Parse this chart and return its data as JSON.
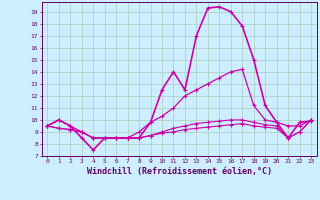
{
  "xlabel": "Windchill (Refroidissement éolien,°C)",
  "xlabel_fontsize": 6,
  "bg_color": "#cceeff",
  "grid_color": "#aaccbb",
  "line_color": "#cc00aa",
  "xlim": [
    -0.5,
    23.5
  ],
  "ylim": [
    7,
    19.8
  ],
  "xticks": [
    0,
    1,
    2,
    3,
    4,
    5,
    6,
    7,
    8,
    9,
    10,
    11,
    12,
    13,
    14,
    15,
    16,
    17,
    18,
    19,
    20,
    21,
    22,
    23
  ],
  "yticks": [
    7,
    8,
    9,
    10,
    11,
    12,
    13,
    14,
    15,
    16,
    17,
    18,
    19
  ],
  "series": [
    [
      9.5,
      10.0,
      9.5,
      8.5,
      7.5,
      8.5,
      8.5,
      8.5,
      8.5,
      9.8,
      12.5,
      14.0,
      12.5,
      17.0,
      19.3,
      19.4,
      19.0,
      17.8,
      15.0,
      11.2,
      9.8,
      8.5,
      9.8,
      9.9
    ],
    [
      9.5,
      10.0,
      9.5,
      9.0,
      8.5,
      8.5,
      8.5,
      8.5,
      9.0,
      9.8,
      10.3,
      11.0,
      12.0,
      12.5,
      13.0,
      13.5,
      14.0,
      14.2,
      11.2,
      10.0,
      9.8,
      9.5,
      9.5,
      10.0
    ],
    [
      9.5,
      9.3,
      9.2,
      9.0,
      8.5,
      8.5,
      8.5,
      8.5,
      8.5,
      8.7,
      9.0,
      9.3,
      9.5,
      9.7,
      9.8,
      9.9,
      10.0,
      10.0,
      9.8,
      9.6,
      9.5,
      8.5,
      9.0,
      10.0
    ],
    [
      9.5,
      9.3,
      9.2,
      9.0,
      8.5,
      8.5,
      8.5,
      8.5,
      8.5,
      8.7,
      8.9,
      9.0,
      9.2,
      9.3,
      9.4,
      9.5,
      9.6,
      9.7,
      9.5,
      9.4,
      9.3,
      8.5,
      9.0,
      10.0
    ]
  ]
}
